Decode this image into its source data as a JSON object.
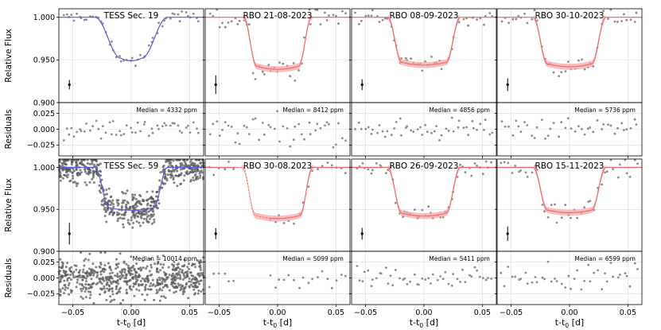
{
  "chart_data": {
    "type": "scatter",
    "figure": "Transit light curves with residuals",
    "xlabel": "t-t$_0$ [d]",
    "xlabel_text": "t-t",
    "xlabel_sub": "0",
    "xlabel_units": "[d]",
    "ylabel_top": "Relative Flux",
    "ylabel_bottom": "Residuals",
    "xlim": [
      -0.062,
      0.062
    ],
    "xticks": [
      -0.05,
      0.0,
      0.05
    ],
    "xtick_labels": [
      "−0.05",
      "0.00",
      "0.05"
    ],
    "flux_ylim": [
      0.9,
      1.01
    ],
    "flux_yticks": [
      1.0,
      0.95,
      0.9
    ],
    "flux_ytick_labels": [
      "1.000",
      "0.950",
      "0.900"
    ],
    "resid_ylim": [
      -0.042,
      0.042
    ],
    "resid_yticks": [
      0.025,
      0.0,
      -0.025
    ],
    "resid_ytick_labels": [
      "0.025",
      "0.000",
      "−0.025"
    ],
    "median_prefix": "Median = ",
    "panels": [
      {
        "title": "TESS Sec. 19",
        "median": "4332",
        "unit": "ppm",
        "model": "blue",
        "n_points": 52,
        "scatter": 0.0043,
        "depth": 0.051,
        "half_width": 0.031,
        "ingress": 0.022,
        "show_error_bar": true
      },
      {
        "title": "RBO 21-08-2023",
        "median": "8412",
        "unit": "ppm",
        "model": "red",
        "n_points": 45,
        "scatter": 0.0084,
        "depth": 0.061,
        "half_width": 0.029,
        "ingress": 0.011,
        "show_error_bar": true
      },
      {
        "title": "RBO 08-09-2023",
        "median": "4856",
        "unit": "ppm",
        "model": "red",
        "n_points": 48,
        "scatter": 0.0049,
        "depth": 0.056,
        "half_width": 0.031,
        "ingress": 0.012,
        "show_error_bar": true
      },
      {
        "title": "RBO 30-10-2023",
        "median": "5736",
        "unit": "ppm",
        "model": "red",
        "n_points": 42,
        "scatter": 0.0057,
        "depth": 0.058,
        "half_width": 0.031,
        "ingress": 0.012,
        "show_error_bar": true
      },
      {
        "title": "TESS Sec. 59",
        "median": "10014",
        "unit": "ppm",
        "model": "blue",
        "n_points": 620,
        "scatter": 0.01,
        "depth": 0.051,
        "half_width": 0.031,
        "ingress": 0.012,
        "show_error_bar": true
      },
      {
        "title": "RBO 30-08.2023",
        "median": "5099",
        "unit": "ppm",
        "model": "red",
        "n_points": 30,
        "scatter": 0.0051,
        "depth": 0.061,
        "half_width": 0.03,
        "ingress": 0.011,
        "gap": [
          -0.035,
          -0.008
        ],
        "show_error_bar": true
      },
      {
        "title": "RBO 26-09-2023",
        "median": "5411",
        "unit": "ppm",
        "model": "red",
        "n_points": 48,
        "scatter": 0.0054,
        "depth": 0.058,
        "half_width": 0.031,
        "ingress": 0.012,
        "show_error_bar": true
      },
      {
        "title": "RBO 15-11-2023",
        "median": "6599",
        "unit": "ppm",
        "model": "red",
        "n_points": 42,
        "scatter": 0.0066,
        "depth": 0.054,
        "half_width": 0.031,
        "ingress": 0.012,
        "show_error_bar": true
      }
    ],
    "colors": {
      "blue_model": "#5a5ae0",
      "red_model": "#ef6b6b",
      "red_band": "#f6a9a9",
      "points": "#8c8c8c",
      "dense_points": "#5a5a5a"
    }
  }
}
